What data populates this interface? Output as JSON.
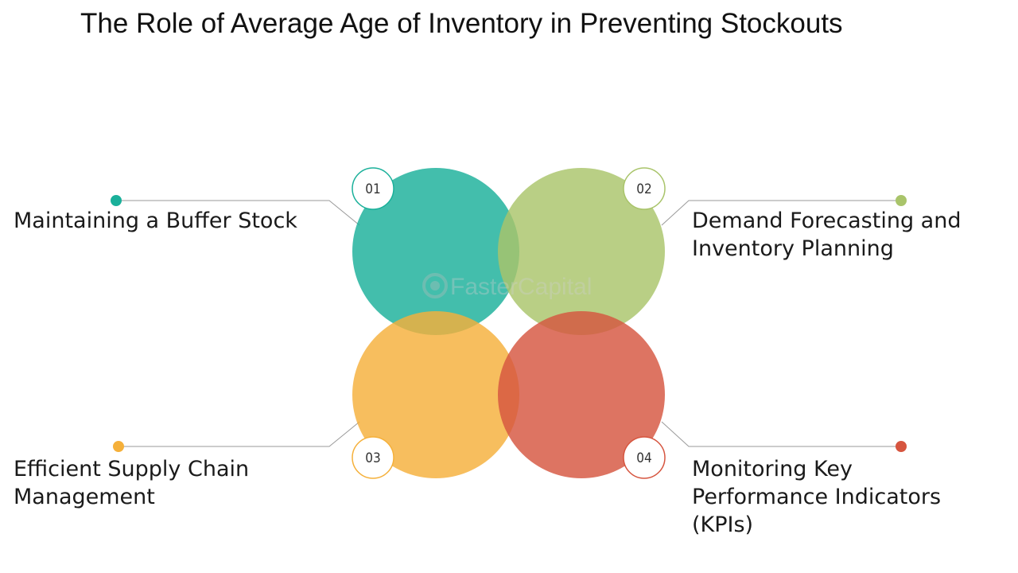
{
  "title": "The Role of Average Age of Inventory in Preventing Stockouts",
  "watermark": "FasterCapital",
  "colors": {
    "teal": "#1ab09a",
    "green": "#a9c46a",
    "orange": "#f5b03a",
    "red": "#d6553f"
  },
  "items": [
    {
      "number": "01",
      "label": "Maintaining a Buffer Stock",
      "color": "#1ab09a"
    },
    {
      "number": "02",
      "label": "Demand Forecasting and\nInventory Planning",
      "color": "#a9c46a"
    },
    {
      "number": "03",
      "label": "Efficient Supply Chain\nManagement",
      "color": "#f5b03a"
    },
    {
      "number": "04",
      "label": "Monitoring Key\nPerformance Indicators\n(KPIs)",
      "color": "#d6553f"
    }
  ]
}
